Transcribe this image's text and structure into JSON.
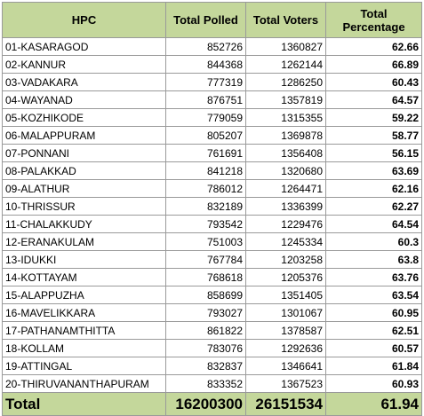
{
  "header": {
    "hpc": "HPC",
    "total_polled": "Total Polled",
    "total_voters": "Total Voters",
    "total_percentage": "Total Percentage"
  },
  "rows": [
    {
      "hpc": "01-KASARAGOD",
      "polled": "852726",
      "voters": "1360827",
      "pct": "62.66"
    },
    {
      "hpc": "02-KANNUR",
      "polled": "844368",
      "voters": "1262144",
      "pct": "66.89"
    },
    {
      "hpc": "03-VADAKARA",
      "polled": "777319",
      "voters": "1286250",
      "pct": "60.43"
    },
    {
      "hpc": "04-WAYANAD",
      "polled": "876751",
      "voters": "1357819",
      "pct": "64.57"
    },
    {
      "hpc": "05-KOZHIKODE",
      "polled": "779059",
      "voters": "1315355",
      "pct": "59.22"
    },
    {
      "hpc": "06-MALAPPURAM",
      "polled": "805207",
      "voters": "1369878",
      "pct": "58.77"
    },
    {
      "hpc": "07-PONNANI",
      "polled": "761691",
      "voters": "1356408",
      "pct": "56.15"
    },
    {
      "hpc": "08-PALAKKAD",
      "polled": "841218",
      "voters": "1320680",
      "pct": "63.69"
    },
    {
      "hpc": "09-ALATHUR",
      "polled": "786012",
      "voters": "1264471",
      "pct": "62.16"
    },
    {
      "hpc": "10-THRISSUR",
      "polled": "832189",
      "voters": "1336399",
      "pct": "62.27"
    },
    {
      "hpc": "11-CHALAKKUDY",
      "polled": "793542",
      "voters": "1229476",
      "pct": "64.54"
    },
    {
      "hpc": "12-ERANAKULAM",
      "polled": "751003",
      "voters": "1245334",
      "pct": "60.3"
    },
    {
      "hpc": "13-IDUKKI",
      "polled": "767784",
      "voters": "1203258",
      "pct": "63.8"
    },
    {
      "hpc": "14-KOTTAYAM",
      "polled": "768618",
      "voters": "1205376",
      "pct": "63.76"
    },
    {
      "hpc": "15-ALAPPUZHA",
      "polled": "858699",
      "voters": "1351405",
      "pct": "63.54"
    },
    {
      "hpc": "16-MAVELIKKARA",
      "polled": "793027",
      "voters": "1301067",
      "pct": "60.95"
    },
    {
      "hpc": "17-PATHANAMTHITTA",
      "polled": "861822",
      "voters": "1378587",
      "pct": "62.51"
    },
    {
      "hpc": "18-KOLLAM",
      "polled": "783076",
      "voters": "1292636",
      "pct": "60.57"
    },
    {
      "hpc": "19-ATTINGAL",
      "polled": "832837",
      "voters": "1346641",
      "pct": "61.84"
    },
    {
      "hpc": "20-THIRUVANANTHAPURAM",
      "polled": "833352",
      "voters": "1367523",
      "pct": "60.93"
    }
  ],
  "total": {
    "label": "Total",
    "polled": "16200300",
    "voters": "26151534",
    "pct": "61.94"
  },
  "colors": {
    "header_fill": "#c4d79b",
    "border": "#9a9a9a"
  }
}
